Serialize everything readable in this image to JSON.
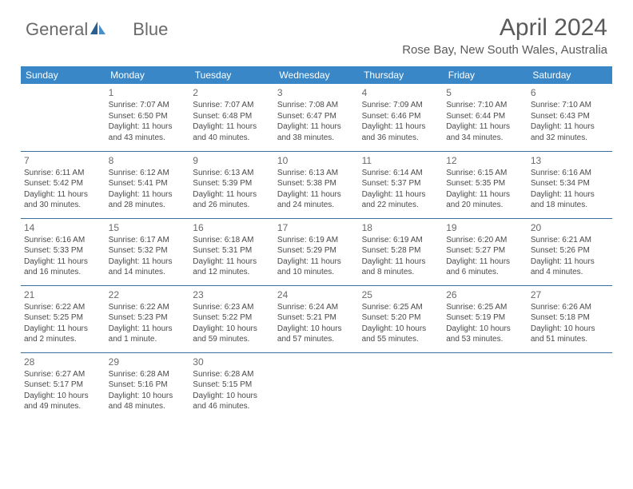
{
  "logo": {
    "word1": "General",
    "word2": "Blue"
  },
  "title": "April 2024",
  "location": "Rose Bay, New South Wales, Australia",
  "colors": {
    "header_bg": "#3a87c7",
    "header_text": "#ffffff",
    "rule": "#3a6fa0",
    "text": "#4a4a4a",
    "title_text": "#5a5a5a",
    "logo_text": "#6a6a6a",
    "logo_icon1": "#2a5f8f",
    "logo_icon2": "#4a8fc7"
  },
  "dayHeaders": [
    "Sunday",
    "Monday",
    "Tuesday",
    "Wednesday",
    "Thursday",
    "Friday",
    "Saturday"
  ],
  "weeks": [
    [
      null,
      {
        "n": "1",
        "sr": "Sunrise: 7:07 AM",
        "ss": "Sunset: 6:50 PM",
        "dl": "Daylight: 11 hours and 43 minutes."
      },
      {
        "n": "2",
        "sr": "Sunrise: 7:07 AM",
        "ss": "Sunset: 6:48 PM",
        "dl": "Daylight: 11 hours and 40 minutes."
      },
      {
        "n": "3",
        "sr": "Sunrise: 7:08 AM",
        "ss": "Sunset: 6:47 PM",
        "dl": "Daylight: 11 hours and 38 minutes."
      },
      {
        "n": "4",
        "sr": "Sunrise: 7:09 AM",
        "ss": "Sunset: 6:46 PM",
        "dl": "Daylight: 11 hours and 36 minutes."
      },
      {
        "n": "5",
        "sr": "Sunrise: 7:10 AM",
        "ss": "Sunset: 6:44 PM",
        "dl": "Daylight: 11 hours and 34 minutes."
      },
      {
        "n": "6",
        "sr": "Sunrise: 7:10 AM",
        "ss": "Sunset: 6:43 PM",
        "dl": "Daylight: 11 hours and 32 minutes."
      }
    ],
    [
      {
        "n": "7",
        "sr": "Sunrise: 6:11 AM",
        "ss": "Sunset: 5:42 PM",
        "dl": "Daylight: 11 hours and 30 minutes."
      },
      {
        "n": "8",
        "sr": "Sunrise: 6:12 AM",
        "ss": "Sunset: 5:41 PM",
        "dl": "Daylight: 11 hours and 28 minutes."
      },
      {
        "n": "9",
        "sr": "Sunrise: 6:13 AM",
        "ss": "Sunset: 5:39 PM",
        "dl": "Daylight: 11 hours and 26 minutes."
      },
      {
        "n": "10",
        "sr": "Sunrise: 6:13 AM",
        "ss": "Sunset: 5:38 PM",
        "dl": "Daylight: 11 hours and 24 minutes."
      },
      {
        "n": "11",
        "sr": "Sunrise: 6:14 AM",
        "ss": "Sunset: 5:37 PM",
        "dl": "Daylight: 11 hours and 22 minutes."
      },
      {
        "n": "12",
        "sr": "Sunrise: 6:15 AM",
        "ss": "Sunset: 5:35 PM",
        "dl": "Daylight: 11 hours and 20 minutes."
      },
      {
        "n": "13",
        "sr": "Sunrise: 6:16 AM",
        "ss": "Sunset: 5:34 PM",
        "dl": "Daylight: 11 hours and 18 minutes."
      }
    ],
    [
      {
        "n": "14",
        "sr": "Sunrise: 6:16 AM",
        "ss": "Sunset: 5:33 PM",
        "dl": "Daylight: 11 hours and 16 minutes."
      },
      {
        "n": "15",
        "sr": "Sunrise: 6:17 AM",
        "ss": "Sunset: 5:32 PM",
        "dl": "Daylight: 11 hours and 14 minutes."
      },
      {
        "n": "16",
        "sr": "Sunrise: 6:18 AM",
        "ss": "Sunset: 5:31 PM",
        "dl": "Daylight: 11 hours and 12 minutes."
      },
      {
        "n": "17",
        "sr": "Sunrise: 6:19 AM",
        "ss": "Sunset: 5:29 PM",
        "dl": "Daylight: 11 hours and 10 minutes."
      },
      {
        "n": "18",
        "sr": "Sunrise: 6:19 AM",
        "ss": "Sunset: 5:28 PM",
        "dl": "Daylight: 11 hours and 8 minutes."
      },
      {
        "n": "19",
        "sr": "Sunrise: 6:20 AM",
        "ss": "Sunset: 5:27 PM",
        "dl": "Daylight: 11 hours and 6 minutes."
      },
      {
        "n": "20",
        "sr": "Sunrise: 6:21 AM",
        "ss": "Sunset: 5:26 PM",
        "dl": "Daylight: 11 hours and 4 minutes."
      }
    ],
    [
      {
        "n": "21",
        "sr": "Sunrise: 6:22 AM",
        "ss": "Sunset: 5:25 PM",
        "dl": "Daylight: 11 hours and 2 minutes."
      },
      {
        "n": "22",
        "sr": "Sunrise: 6:22 AM",
        "ss": "Sunset: 5:23 PM",
        "dl": "Daylight: 11 hours and 1 minute."
      },
      {
        "n": "23",
        "sr": "Sunrise: 6:23 AM",
        "ss": "Sunset: 5:22 PM",
        "dl": "Daylight: 10 hours and 59 minutes."
      },
      {
        "n": "24",
        "sr": "Sunrise: 6:24 AM",
        "ss": "Sunset: 5:21 PM",
        "dl": "Daylight: 10 hours and 57 minutes."
      },
      {
        "n": "25",
        "sr": "Sunrise: 6:25 AM",
        "ss": "Sunset: 5:20 PM",
        "dl": "Daylight: 10 hours and 55 minutes."
      },
      {
        "n": "26",
        "sr": "Sunrise: 6:25 AM",
        "ss": "Sunset: 5:19 PM",
        "dl": "Daylight: 10 hours and 53 minutes."
      },
      {
        "n": "27",
        "sr": "Sunrise: 6:26 AM",
        "ss": "Sunset: 5:18 PM",
        "dl": "Daylight: 10 hours and 51 minutes."
      }
    ],
    [
      {
        "n": "28",
        "sr": "Sunrise: 6:27 AM",
        "ss": "Sunset: 5:17 PM",
        "dl": "Daylight: 10 hours and 49 minutes."
      },
      {
        "n": "29",
        "sr": "Sunrise: 6:28 AM",
        "ss": "Sunset: 5:16 PM",
        "dl": "Daylight: 10 hours and 48 minutes."
      },
      {
        "n": "30",
        "sr": "Sunrise: 6:28 AM",
        "ss": "Sunset: 5:15 PM",
        "dl": "Daylight: 10 hours and 46 minutes."
      },
      null,
      null,
      null,
      null
    ]
  ]
}
